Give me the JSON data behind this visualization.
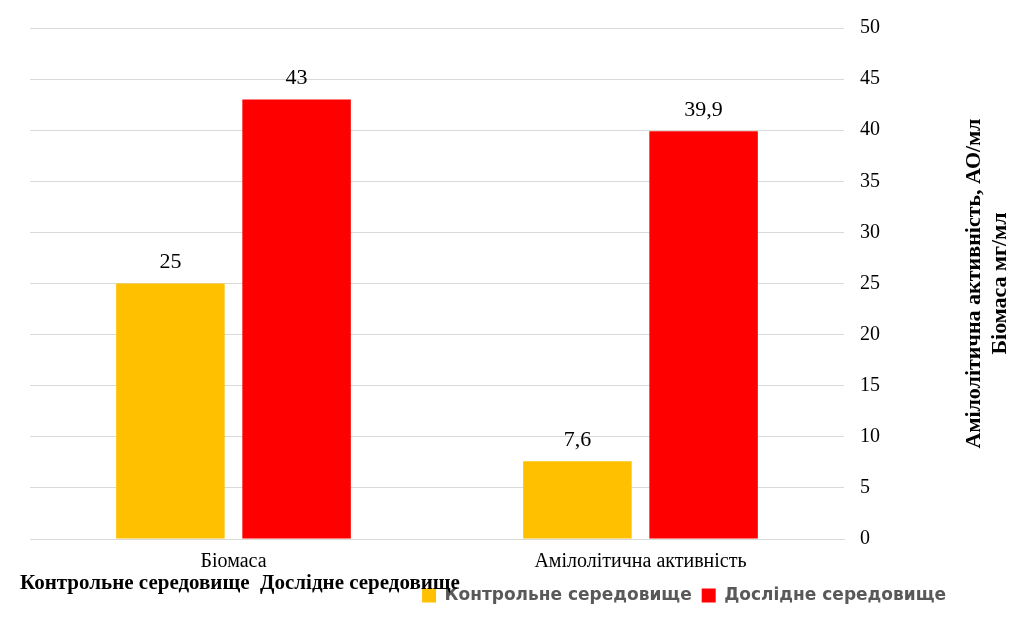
{
  "chart_data": {
    "type": "bar",
    "categories": [
      "Біомаса",
      "Амілолітична активність"
    ],
    "series": [
      {
        "name": "Контрольне середовище",
        "color": "#ffc000",
        "values": [
          25,
          7.6
        ],
        "value_labels": [
          "25",
          "7,6"
        ]
      },
      {
        "name": "Дослідне середовище",
        "color": "#ff0000",
        "values": [
          43,
          39.9
        ],
        "value_labels": [
          "43",
          "39,9"
        ]
      }
    ],
    "ylabel": "Амілолітична активність, АО/мл\nБіомаса мг/мл",
    "ylim": [
      0,
      50
    ],
    "yticks": [
      0,
      5,
      10,
      15,
      20,
      25,
      30,
      35,
      40,
      45,
      50
    ],
    "grid": "y",
    "legend": "bottom right",
    "annotations": [
      "Контрольне середовище  Дослідне середовище"
    ]
  }
}
